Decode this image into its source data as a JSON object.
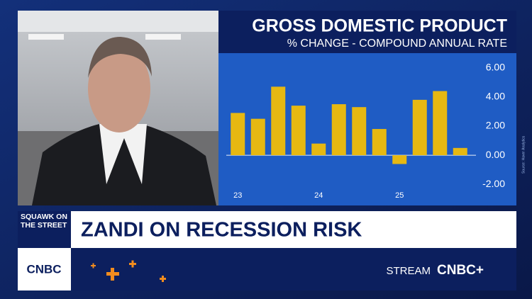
{
  "chart_data": {
    "type": "bar",
    "title": "GROSS DOMESTIC PRODUCT",
    "subtitle": "% CHANGE - COMPOUND ANNUAL RATE",
    "categories": [
      "23",
      null,
      null,
      null,
      "24",
      null,
      null,
      null,
      "25",
      null,
      null,
      null
    ],
    "values": [
      2.9,
      2.5,
      4.7,
      3.4,
      0.8,
      3.5,
      3.3,
      1.8,
      -0.6,
      3.8,
      4.4,
      0.5
    ],
    "color": "#e6b812",
    "ylim": [
      -3.2,
      7
    ],
    "yticks": [
      {
        "value": -2,
        "label": "-2.00"
      },
      {
        "value": 0,
        "label": "0.00"
      },
      {
        "value": 2,
        "label": "2.00"
      },
      {
        "value": 4,
        "label": "4.00"
      },
      {
        "value": 6,
        "label": "6.00"
      }
    ],
    "source": "Source: Haver Analytics"
  },
  "banner": {
    "show": "SQUAWK ON THE STREET",
    "headline": "ZANDI ON RECESSION RISK",
    "network": "CNBC",
    "stream": "STREAM",
    "stream_brand": "CNBC+"
  }
}
